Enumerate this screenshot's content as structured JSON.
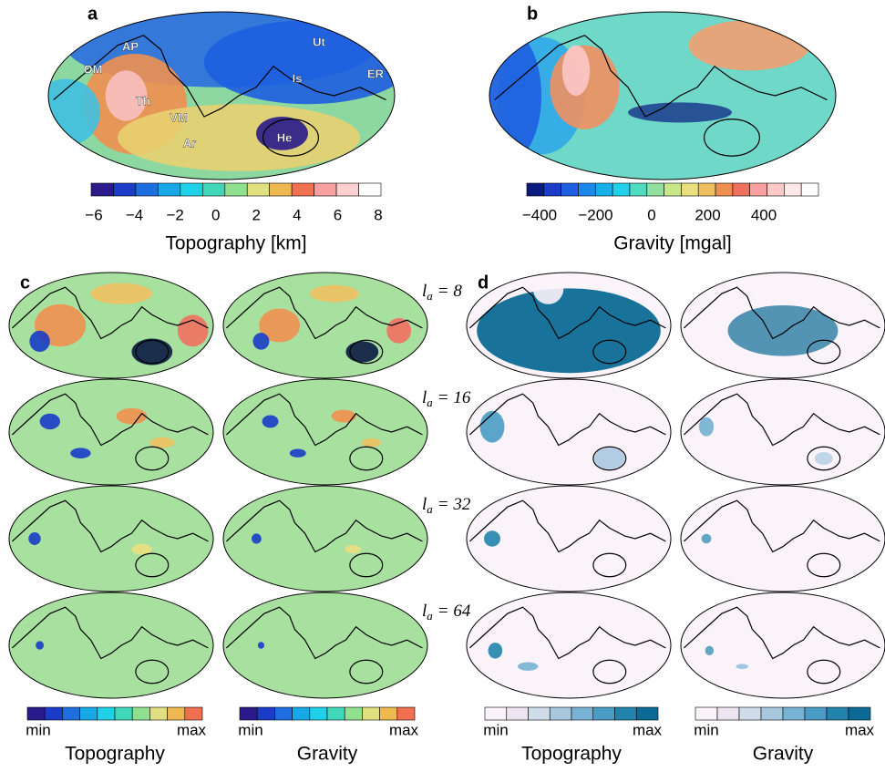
{
  "panels": {
    "a": {
      "label": "a",
      "place_labels": [
        "AP",
        "OM",
        "Th",
        "VM",
        "Ar",
        "He",
        "Ut",
        "Is",
        "ER"
      ],
      "colorbar": {
        "ticks": [
          "−6",
          "−4",
          "−2",
          "0",
          "2",
          "4",
          "6",
          "8"
        ],
        "title": "Topography [km]"
      }
    },
    "b": {
      "label": "b",
      "colorbar": {
        "ticks": [
          "−400",
          "−200",
          "0",
          "200",
          "400"
        ],
        "title": "Gravity [mgal]"
      }
    },
    "c": {
      "label": "c",
      "colorbars": [
        {
          "min": "min",
          "max": "max",
          "title": "Topography"
        },
        {
          "min": "min",
          "max": "max",
          "title": "Gravity"
        }
      ]
    },
    "d": {
      "label": "d",
      "colorbars": [
        {
          "min": "min",
          "max": "max",
          "title": "Topography"
        },
        {
          "min": "min",
          "max": "max",
          "title": "Gravity"
        }
      ]
    }
  },
  "row_labels": [
    {
      "symbol": "l",
      "subscript": "a",
      "equals": "= 8"
    },
    {
      "symbol": "l",
      "subscript": "a",
      "equals": "= 16"
    },
    {
      "symbol": "l",
      "subscript": "a",
      "equals": "= 32"
    },
    {
      "symbol": "l",
      "subscript": "a",
      "equals": "= 64"
    }
  ]
}
